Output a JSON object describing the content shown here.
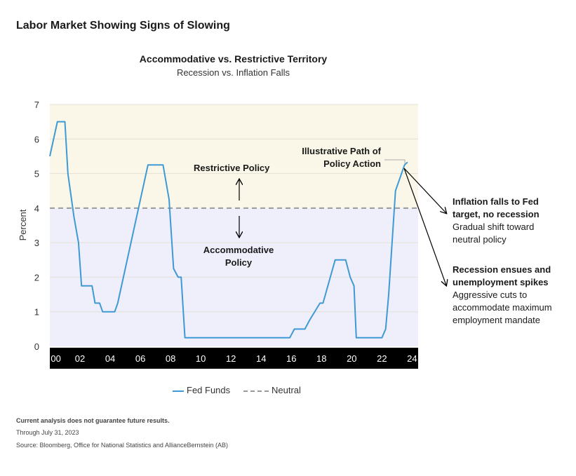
{
  "page_title": "Labor Market Showing Signs of Slowing",
  "chart_data": {
    "type": "line",
    "title": "Accommodative vs. Restrictive Territory",
    "subtitle": "Recession vs. Inflation Falls",
    "ylabel": "Percent",
    "xlabel": "",
    "xlim": [
      2000,
      2024.4
    ],
    "ylim": [
      0,
      7
    ],
    "yticks": [
      "0",
      "1",
      "2",
      "3",
      "4",
      "5",
      "6",
      "7"
    ],
    "xticks": [
      {
        "label": "00",
        "x": 2000.4
      },
      {
        "label": "02",
        "x": 2002
      },
      {
        "label": "04",
        "x": 2004
      },
      {
        "label": "06",
        "x": 2006
      },
      {
        "label": "08",
        "x": 2008
      },
      {
        "label": "10",
        "x": 2010
      },
      {
        "label": "12",
        "x": 2012
      },
      {
        "label": "14",
        "x": 2014
      },
      {
        "label": "16",
        "x": 2016
      },
      {
        "label": "18",
        "x": 2018
      },
      {
        "label": "20",
        "x": 2020
      },
      {
        "label": "22",
        "x": 2022
      },
      {
        "label": "24",
        "x": 2024
      }
    ],
    "grid": true,
    "neutral_level": 4,
    "colors": {
      "fed_funds": "#3e9ad4",
      "neutral": "#9a9a9a",
      "restrictive_zone": "#fbf7e8",
      "accommodative_zone": "#efeefb",
      "axis_band": "#000000"
    },
    "series": [
      {
        "name": "Fed Funds",
        "x": [
          2000.0,
          2000.5,
          2001.0,
          2001.2,
          2001.6,
          2001.9,
          2002.1,
          2002.8,
          2003.0,
          2003.3,
          2003.5,
          2004.3,
          2004.5,
          2006.5,
          2007.5,
          2007.9,
          2008.2,
          2008.5,
          2008.7,
          2008.95,
          2015.9,
          2016.2,
          2016.9,
          2017.2,
          2017.9,
          2018.1,
          2018.9,
          2019.6,
          2019.9,
          2020.15,
          2020.3,
          2022.0,
          2022.25,
          2022.45,
          2022.9,
          2023.3,
          2023.5,
          2023.7
        ],
        "y": [
          5.5,
          6.5,
          6.5,
          5.0,
          3.75,
          3.0,
          1.75,
          1.75,
          1.25,
          1.25,
          1.0,
          1.0,
          1.25,
          5.25,
          5.25,
          4.25,
          2.25,
          2.0,
          2.0,
          0.25,
          0.25,
          0.5,
          0.5,
          0.75,
          1.25,
          1.25,
          2.5,
          2.5,
          2.0,
          1.75,
          0.25,
          0.25,
          0.5,
          1.5,
          4.5,
          5.0,
          5.25,
          5.33
        ]
      },
      {
        "name": "Neutral",
        "x": [
          2000,
          2024.4
        ],
        "y": [
          4,
          4
        ]
      }
    ],
    "annotations": {
      "restrictive": "Restrictive Policy",
      "accommodative_line1": "Accommodative",
      "accommodative_line2": "Policy",
      "path_line1": "Illustrative Path of",
      "path_line2": "Policy Action",
      "scenario1_title_line1": "Inflation falls to Fed",
      "scenario1_title_line2": "target, no recession",
      "scenario1_desc_line1": "Gradual shift toward",
      "scenario1_desc_line2": "neutral policy",
      "scenario2_title_line1": "Recession ensues and",
      "scenario2_title_line2": "unemployment spikes",
      "scenario2_desc_line1": "Aggressive cuts to",
      "scenario2_desc_line2": "accommodate maximum",
      "scenario2_desc_line3": "employment mandate"
    },
    "legend": [
      {
        "name": "Fed Funds",
        "style": "solid"
      },
      {
        "name": "Neutral",
        "style": "dashed"
      }
    ]
  },
  "footer": {
    "disclaimer": "Current analysis does not guarantee future results.",
    "through": "Through July 31, 2023",
    "source": "Source: Bloomberg, Office for National Statistics and AllianceBernstein (AB)"
  }
}
